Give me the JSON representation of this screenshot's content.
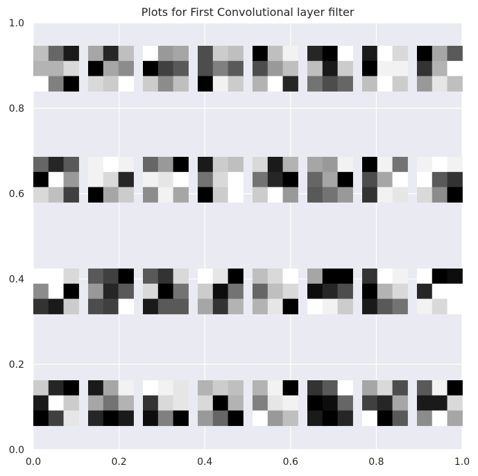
{
  "chart_data": {
    "type": "heatmap",
    "title": "Plots for First Convolutional layer filter",
    "xlabel": "",
    "ylabel": "",
    "xlim": [
      0.0,
      1.0
    ],
    "ylim": [
      0.0,
      1.0
    ],
    "x_ticks": [
      "0.0",
      "0.2",
      "0.4",
      "0.6",
      "0.8",
      "1.0"
    ],
    "y_ticks": [
      "0.0",
      "0.2",
      "0.4",
      "0.6",
      "0.8",
      "1.0"
    ],
    "grid": true,
    "colormap": "gray",
    "background_color": "#eaeaf2",
    "grid_color": "#ffffff",
    "text_color": "#262626",
    "filter_grid": {
      "rows": 4,
      "cols": 8,
      "kernel_size": 3
    },
    "filters": [
      [
        [
          [
            0.75,
            0.4,
            0.1
          ],
          [
            0.7,
            0.7,
            0.85
          ],
          [
            1.0,
            0.5,
            0.0
          ]
        ],
        [
          [
            0.65,
            0.15,
            0.75
          ],
          [
            0.0,
            0.65,
            0.55
          ],
          [
            0.85,
            0.8,
            1.0
          ]
        ],
        [
          [
            1.0,
            0.6,
            0.65
          ],
          [
            0.0,
            0.25,
            0.35
          ],
          [
            0.8,
            0.55,
            0.75
          ]
        ],
        [
          [
            0.3,
            0.8,
            0.75
          ],
          [
            0.3,
            0.5,
            0.35
          ],
          [
            0.0,
            0.95,
            0.8
          ]
        ],
        [
          [
            0.0,
            0.75,
            0.95
          ],
          [
            0.3,
            0.6,
            0.75
          ],
          [
            0.7,
            1.0,
            0.15
          ]
        ],
        [
          [
            0.15,
            0.0,
            1.0
          ],
          [
            0.75,
            0.1,
            0.8
          ],
          [
            0.45,
            0.3,
            0.4
          ]
        ],
        [
          [
            0.1,
            1.0,
            0.85
          ],
          [
            0.0,
            0.95,
            0.95
          ],
          [
            0.75,
            1.0,
            0.8
          ]
        ],
        [
          [
            0.0,
            0.65,
            0.35
          ],
          [
            0.2,
            0.7,
            1.0
          ],
          [
            0.6,
            0.9,
            0.75
          ]
        ]
      ],
      [
        [
          [
            0.4,
            0.15,
            0.35
          ],
          [
            0.0,
            1.0,
            0.6
          ],
          [
            0.85,
            0.75,
            0.25
          ]
        ],
        [
          [
            0.95,
            1.0,
            0.95
          ],
          [
            0.95,
            0.85,
            0.15
          ],
          [
            0.0,
            0.65,
            0.8
          ]
        ],
        [
          [
            0.4,
            0.6,
            0.0
          ],
          [
            0.95,
            0.9,
            1.0
          ],
          [
            0.55,
            0.95,
            0.65
          ]
        ],
        [
          [
            0.1,
            0.8,
            0.75
          ],
          [
            0.45,
            0.85,
            1.0
          ],
          [
            0.0,
            0.8,
            1.0
          ]
        ],
        [
          [
            0.85,
            0.1,
            0.7
          ],
          [
            0.45,
            0.15,
            0.0
          ],
          [
            0.8,
            1.0,
            0.6
          ]
        ],
        [
          [
            0.65,
            0.6,
            0.95
          ],
          [
            0.4,
            0.65,
            0.0
          ],
          [
            0.35,
            0.45,
            0.6
          ]
        ],
        [
          [
            0.0,
            0.95,
            0.45
          ],
          [
            0.3,
            0.65,
            1.0
          ],
          [
            0.2,
            0.95,
            0.9
          ]
        ],
        [
          [
            0.95,
            1.0,
            0.95
          ],
          [
            1.0,
            0.35,
            0.2
          ],
          [
            0.85,
            0.55,
            0.0
          ]
        ]
      ],
      [
        [
          [
            1.0,
            1.0,
            0.85
          ],
          [
            0.55,
            1.0,
            0.0
          ],
          [
            0.2,
            0.1,
            0.8
          ]
        ],
        [
          [
            0.35,
            0.25,
            0.0
          ],
          [
            0.6,
            0.15,
            0.35
          ],
          [
            0.3,
            0.25,
            1.0
          ]
        ],
        [
          [
            0.35,
            0.2,
            0.85
          ],
          [
            0.85,
            0.0,
            0.45
          ],
          [
            0.1,
            0.35,
            0.35
          ]
        ],
        [
          [
            1.0,
            0.9,
            0.0
          ],
          [
            0.8,
            0.05,
            0.45
          ],
          [
            0.65,
            0.2,
            0.7
          ]
        ],
        [
          [
            0.75,
            0.85,
            1.0
          ],
          [
            0.4,
            0.75,
            0.85
          ],
          [
            0.7,
            0.9,
            0.0
          ]
        ],
        [
          [
            0.65,
            0.0,
            0.0
          ],
          [
            0.05,
            0.15,
            0.3
          ],
          [
            1.0,
            0.95,
            0.8
          ]
        ],
        [
          [
            0.2,
            1.0,
            0.95
          ],
          [
            0.0,
            0.7,
            0.85
          ],
          [
            0.1,
            0.35,
            0.45
          ]
        ],
        [
          [
            1.0,
            0.0,
            0.05
          ],
          [
            0.15,
            1.0,
            1.0
          ],
          [
            0.95,
            0.85,
            1.0
          ]
        ]
      ],
      [
        [
          [
            0.8,
            0.15,
            0.0
          ],
          [
            0.1,
            1.0,
            0.8
          ],
          [
            0.0,
            0.25,
            0.9
          ]
        ],
        [
          [
            0.1,
            0.65,
            0.95
          ],
          [
            0.65,
            0.45,
            0.7
          ],
          [
            0.15,
            0.0,
            0.1
          ]
        ],
        [
          [
            1.0,
            0.95,
            0.9
          ],
          [
            0.2,
            0.85,
            0.9
          ],
          [
            0.05,
            0.5,
            0.0
          ]
        ],
        [
          [
            0.7,
            0.8,
            0.75
          ],
          [
            0.85,
            0.0,
            0.7
          ],
          [
            0.6,
            0.4,
            0.0
          ]
        ],
        [
          [
            0.7,
            0.95,
            0.0
          ],
          [
            0.5,
            0.9,
            0.95
          ],
          [
            1.0,
            0.6,
            0.75
          ]
        ],
        [
          [
            0.2,
            0.35,
            1.0
          ],
          [
            0.0,
            0.05,
            0.4
          ],
          [
            0.1,
            0.0,
            0.15
          ]
        ],
        [
          [
            0.65,
            0.85,
            0.3
          ],
          [
            0.25,
            0.15,
            0.65
          ],
          [
            1.0,
            0.0,
            0.35
          ]
        ],
        [
          [
            0.35,
            0.95,
            0.0
          ],
          [
            0.1,
            0.1,
            0.85
          ],
          [
            0.55,
            1.0,
            0.65
          ]
        ]
      ]
    ]
  }
}
